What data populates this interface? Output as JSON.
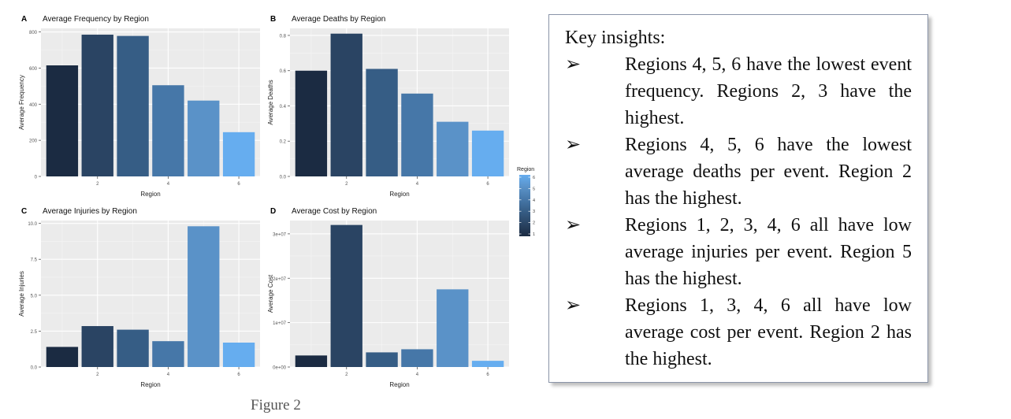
{
  "figure_caption": "Figure 2",
  "legend": {
    "title": "Region",
    "ticks": [
      "6",
      "5",
      "4",
      "3",
      "2",
      "1"
    ]
  },
  "region_colors": [
    "#1b2b42",
    "#2a4463",
    "#365d85",
    "#4677a8",
    "#5a92c8",
    "#66adef"
  ],
  "chart_data": [
    {
      "type": "bar",
      "panel_letter": "A",
      "title": "Average Frequency by Region",
      "xlabel": "Region",
      "ylabel": "Average Frequency",
      "categories": [
        1,
        2,
        3,
        4,
        5,
        6
      ],
      "values": [
        615,
        785,
        778,
        505,
        420,
        245
      ],
      "ylim": [
        0,
        820
      ],
      "yticks": [
        0,
        200,
        400,
        600,
        800
      ],
      "ytick_labels": [
        "0",
        "200",
        "400",
        "600",
        "800"
      ],
      "xticks": [
        2,
        4,
        6
      ],
      "xtick_labels": [
        "2",
        "4",
        "6"
      ],
      "grid": true
    },
    {
      "type": "bar",
      "panel_letter": "B",
      "title": "Average Deaths by Region",
      "xlabel": "Region",
      "ylabel": "Average Deaths",
      "categories": [
        1,
        2,
        3,
        4,
        5,
        6
      ],
      "values": [
        0.6,
        0.81,
        0.61,
        0.47,
        0.31,
        0.26
      ],
      "ylim": [
        0,
        0.84
      ],
      "yticks": [
        0,
        0.2,
        0.4,
        0.6,
        0.8
      ],
      "ytick_labels": [
        "0.0",
        "0.2",
        "0.4",
        "0.6",
        "0.8"
      ],
      "xticks": [
        2,
        4,
        6
      ],
      "xtick_labels": [
        "2",
        "4",
        "6"
      ],
      "grid": true
    },
    {
      "type": "bar",
      "panel_letter": "C",
      "title": "Average Injuries by Region",
      "xlabel": "Region",
      "ylabel": "Average Injuries",
      "categories": [
        1,
        2,
        3,
        4,
        5,
        6
      ],
      "values": [
        1.4,
        2.85,
        2.6,
        1.8,
        9.8,
        1.7
      ],
      "ylim": [
        0,
        10.2
      ],
      "yticks": [
        0,
        2.5,
        5,
        7.5,
        10
      ],
      "ytick_labels": [
        "0.0",
        "2.5",
        "5.0",
        "7.5",
        "10.0"
      ],
      "xticks": [
        2,
        4,
        6
      ],
      "xtick_labels": [
        "2",
        "4",
        "6"
      ],
      "grid": true
    },
    {
      "type": "bar",
      "panel_letter": "D",
      "title": "Average Cost by Region",
      "xlabel": "Region",
      "ylabel": "Average Cost",
      "categories": [
        1,
        2,
        3,
        4,
        5,
        6
      ],
      "values": [
        2600000,
        32000000,
        3300000,
        4000000,
        17500000,
        1400000
      ],
      "ylim": [
        0,
        33000000
      ],
      "yticks": [
        0,
        10000000,
        20000000,
        30000000
      ],
      "ytick_labels": [
        "0e+00",
        "1e+07",
        "2e+07",
        "3e+07"
      ],
      "xticks": [
        2,
        4,
        6
      ],
      "xtick_labels": [
        "2",
        "4",
        "6"
      ],
      "grid": true
    }
  ],
  "insights": {
    "title": "Key insights:",
    "bullet_symbol": "➢",
    "items": [
      "Regions 4, 5, 6 have the lowest event frequency. Regions 2, 3 have the highest.",
      "Regions 4, 5, 6 have the lowest average deaths per event. Region 2 has the highest.",
      "Regions 1, 2, 3, 4, 6 all have low average injuries per event. Region 5 has the highest.",
      "Regions 1, 3, 4, 6 all have low average cost per event. Region 2 has the highest."
    ]
  }
}
